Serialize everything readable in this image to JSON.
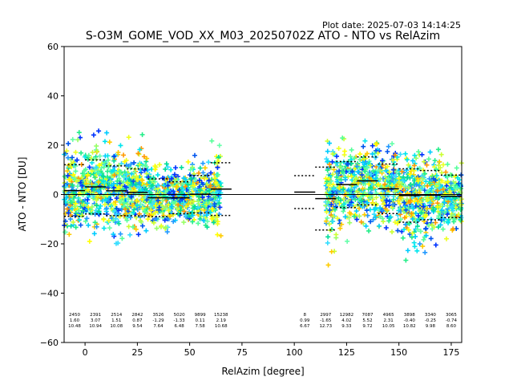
{
  "plot_date": "Plot date: 2025-07-03 14:14:25",
  "chart_data": {
    "type": "scatter",
    "title": "S-O3M_GOME_VOD_XX_M03_20250702Z ATO - NTO vs RelAzim",
    "xlabel": "RelAzim [degree]",
    "ylabel": "ATO - NTO [DU]",
    "xlim": [
      -10,
      180
    ],
    "ylim": [
      -60,
      60
    ],
    "xticks": [
      "0",
      "25",
      "50",
      "75",
      "100",
      "125",
      "150",
      "175"
    ],
    "yticks": [
      "−60",
      "−40",
      "−20",
      "0",
      "20",
      "40",
      "60"
    ],
    "xtick_values": [
      0,
      25,
      50,
      75,
      100,
      125,
      150,
      175
    ],
    "ytick_values": [
      -60,
      -40,
      -20,
      0,
      20,
      40,
      60
    ],
    "zero_line": 0,
    "scatter_ranges": [
      [
        -10,
        65
      ],
      [
        115,
        180
      ]
    ],
    "bins": [
      {
        "x0": -10,
        "x1": 0,
        "count": "2450",
        "mean": "1.60",
        "std": "10.48",
        "mean_v": 1.6,
        "std_v": 10.48
      },
      {
        "x0": 0,
        "x1": 10,
        "count": "2391",
        "mean": "3.07",
        "std": "10.94",
        "mean_v": 3.07,
        "std_v": 10.94
      },
      {
        "x0": 10,
        "x1": 20,
        "count": "2514",
        "mean": "1.51",
        "std": "10.08",
        "mean_v": 1.51,
        "std_v": 10.08
      },
      {
        "x0": 20,
        "x1": 30,
        "count": "2842",
        "mean": "0.87",
        "std": "9.54",
        "mean_v": 0.87,
        "std_v": 9.54
      },
      {
        "x0": 30,
        "x1": 40,
        "count": "3526",
        "mean": "-1.29",
        "std": "7.64",
        "mean_v": -1.29,
        "std_v": 7.64
      },
      {
        "x0": 40,
        "x1": 50,
        "count": "5020",
        "mean": "-1.33",
        "std": "6.48",
        "mean_v": -1.33,
        "std_v": 6.48
      },
      {
        "x0": 50,
        "x1": 60,
        "count": "9899",
        "mean": "0.11",
        "std": "7.58",
        "mean_v": 0.11,
        "std_v": 7.58
      },
      {
        "x0": 60,
        "x1": 70,
        "count": "15238",
        "mean": "2.19",
        "std": "10.68",
        "mean_v": 2.19,
        "std_v": 10.68
      },
      {
        "x0": 100,
        "x1": 110,
        "count": "8",
        "mean": "0.99",
        "std": "6.67",
        "mean_v": 0.99,
        "std_v": 6.67
      },
      {
        "x0": 110,
        "x1": 120,
        "count": "2997",
        "mean": "-1.65",
        "std": "12.73",
        "mean_v": -1.65,
        "std_v": 12.73
      },
      {
        "x0": 120,
        "x1": 130,
        "count": "12982",
        "mean": "4.02",
        "std": "9.33",
        "mean_v": 4.02,
        "std_v": 9.33
      },
      {
        "x0": 130,
        "x1": 140,
        "count": "7087",
        "mean": "5.52",
        "std": "9.72",
        "mean_v": 5.52,
        "std_v": 9.72
      },
      {
        "x0": 140,
        "x1": 150,
        "count": "4965",
        "mean": "2.31",
        "std": "10.05",
        "mean_v": 2.31,
        "std_v": 10.05
      },
      {
        "x0": 150,
        "x1": 160,
        "count": "3898",
        "mean": "-0.40",
        "std": "10.82",
        "mean_v": -0.4,
        "std_v": 10.82
      },
      {
        "x0": 160,
        "x1": 170,
        "count": "3340",
        "mean": "-0.25",
        "std": "9.98",
        "mean_v": -0.25,
        "std_v": 9.98
      },
      {
        "x0": 170,
        "x1": 180,
        "count": "3065",
        "mean": "-0.74",
        "std": "8.60",
        "mean_v": -0.74,
        "std_v": 8.6
      }
    ]
  },
  "colors": {
    "palette": [
      "#00dd99",
      "#22ee88",
      "#55ff99",
      "#66ffaa",
      "#99ff66",
      "#00ccff",
      "#00e5ee",
      "#33ddff",
      "#ffff00",
      "#eeff22",
      "#ccff33",
      "#ffcc00",
      "#ff9900",
      "#0033ff",
      "#0055ee",
      "#2299ff"
    ],
    "mean_line": "#000000",
    "zero_line": "#000000"
  }
}
